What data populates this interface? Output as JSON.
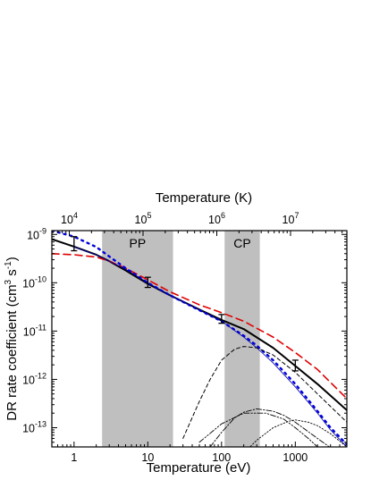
{
  "chart_data": {
    "type": "line",
    "xlabel_bottom": "Temperature (eV)",
    "xlabel_top": "Temperature (K)",
    "ylabel": "DR rate coefficient (cm3 s-1)",
    "ylabel_parts": {
      "main": "DR rate coefficient (cm",
      "exp1": "3",
      "mid": " s",
      "exp2": "-1",
      "end": ")"
    },
    "x_scale": "log",
    "y_scale": "log",
    "xlim_eV": [
      0.5,
      5000
    ],
    "ylim": [
      4e-14,
      1.2e-09
    ],
    "bottom_ticks": [
      {
        "value": 1,
        "label": "1"
      },
      {
        "value": 10,
        "label": "10"
      },
      {
        "value": 100,
        "label": "100"
      },
      {
        "value": 1000,
        "label": "1000"
      }
    ],
    "top_ticks": [
      {
        "value_K": 10000,
        "base": "10",
        "exp": "4"
      },
      {
        "value_K": 100000,
        "base": "10",
        "exp": "5"
      },
      {
        "value_K": 1000000,
        "base": "10",
        "exp": "6"
      },
      {
        "value_K": 10000000,
        "base": "10",
        "exp": "7"
      }
    ],
    "y_ticks": [
      {
        "value": 1e-09,
        "base": "10",
        "exp": "-9"
      },
      {
        "value": 1e-10,
        "base": "10",
        "exp": "-10"
      },
      {
        "value": 1e-11,
        "base": "10",
        "exp": "-11"
      },
      {
        "value": 1e-12,
        "base": "10",
        "exp": "-12"
      },
      {
        "value": 1e-13,
        "base": "10",
        "exp": "-13"
      }
    ],
    "regions": [
      {
        "label": "PP",
        "x_start": 2.4,
        "x_end": 22,
        "color": "#bfbfbf"
      },
      {
        "label": "CP",
        "x_start": 110,
        "x_end": 330,
        "color": "#bfbfbf"
      }
    ],
    "series": [
      {
        "color": "#000000",
        "dash": "",
        "width": 2.0,
        "x": [
          0.5,
          1,
          2,
          3,
          5,
          10,
          20,
          50,
          100,
          200,
          500,
          1000,
          2000,
          5000
        ],
        "y": [
          8e-10,
          5.6e-10,
          3.8e-10,
          2.8e-10,
          1.8e-10,
          9.5e-11,
          5.5e-11,
          2.8e-11,
          1.7e-11,
          1.1e-11,
          4.5e-12,
          1.9e-12,
          8e-13,
          2.3e-13
        ]
      },
      {
        "color": "#e00000",
        "dash": "8,5",
        "width": 1.6,
        "x": [
          0.5,
          1,
          2,
          3,
          5,
          10,
          20,
          50,
          100,
          200,
          500,
          1000,
          2000,
          5000
        ],
        "y": [
          4e-10,
          3.8e-10,
          3.4e-10,
          2.8e-10,
          2e-10,
          1.15e-10,
          6.5e-11,
          3.5e-11,
          2.4e-11,
          1.6e-11,
          7.5e-12,
          3.6e-12,
          1.6e-12,
          4e-13
        ]
      },
      {
        "color": "#0000dd",
        "dash": "2,5",
        "width": 2.4,
        "x": [
          0.5,
          1,
          2,
          3,
          5,
          10,
          20,
          50,
          100,
          200,
          300,
          500,
          1000,
          2000,
          3000,
          5000
        ],
        "y": [
          1.2e-09,
          9e-10,
          5.5e-10,
          3.5e-10,
          2e-10,
          1e-10,
          5.5e-11,
          2.7e-11,
          1.6e-11,
          8e-12,
          5e-12,
          2.5e-12,
          8e-13,
          2.2e-13,
          1e-13,
          4.5e-14
        ]
      },
      {
        "color": "#0000aa",
        "dash": "",
        "width": 0.8,
        "x": [
          1,
          2,
          5,
          10,
          20,
          50,
          100,
          200,
          300,
          500,
          1000,
          2000,
          3000,
          5000
        ],
        "y": [
          5.5e-10,
          3.8e-10,
          1.9e-10,
          1e-10,
          5.5e-11,
          2.7e-11,
          1.6e-11,
          7.5e-12,
          4.5e-12,
          2.2e-12,
          7e-13,
          2e-13,
          9e-14,
          4e-14
        ]
      },
      {
        "color": "#000000",
        "dash": "4,3",
        "width": 1.0,
        "x": [
          30,
          50,
          70,
          100,
          150,
          200,
          300,
          500,
          1000,
          2000,
          5000
        ],
        "y": [
          6e-14,
          3.5e-13,
          1e-12,
          2.5e-12,
          4.2e-12,
          4.8e-12,
          4.5e-12,
          3.2e-12,
          1.4e-12,
          5e-13,
          1.3e-13
        ]
      },
      {
        "color": "#000000",
        "dash": "6,2,1.5,2",
        "width": 0.9,
        "x": [
          70,
          100,
          150,
          200,
          300,
          500,
          700,
          1000,
          2000,
          5000
        ],
        "y": [
          4e-14,
          8e-14,
          1.6e-13,
          2.1e-13,
          2.45e-13,
          2.2e-13,
          1.8e-13,
          1.3e-13,
          6e-14,
          2.2e-14
        ]
      },
      {
        "color": "#000000",
        "dash": "1.5,2",
        "width": 0.9,
        "x": [
          200,
          300,
          500,
          800,
          1000,
          1500,
          2000,
          3000,
          5000
        ],
        "y": [
          3e-14,
          5.5e-14,
          1e-13,
          1.35e-13,
          1.45e-13,
          1.3e-13,
          1.1e-13,
          7.5e-14,
          4e-14
        ]
      },
      {
        "color": "#000000",
        "dash": "6,2,1.5,2,1.5,2",
        "width": 0.9,
        "x": [
          50,
          100,
          200,
          400,
          700,
          1000,
          1500,
          2000,
          3000
        ],
        "y": [
          5e-14,
          1.2e-13,
          2e-13,
          2e-13,
          1.5e-13,
          1e-13,
          6e-14,
          4e-14,
          2e-14
        ]
      }
    ],
    "error_bars": [
      {
        "x": 1,
        "y": 6.5e-10,
        "low": 4.6e-10,
        "high": 9e-10
      },
      {
        "x": 10,
        "y": 1e-10,
        "low": 8e-11,
        "high": 1.3e-10
      },
      {
        "x": 100,
        "y": 1.8e-11,
        "low": 1.45e-11,
        "high": 2.2e-11
      },
      {
        "x": 1000,
        "y": 1.9e-12,
        "low": 1.5e-12,
        "high": 2.5e-12
      }
    ]
  }
}
